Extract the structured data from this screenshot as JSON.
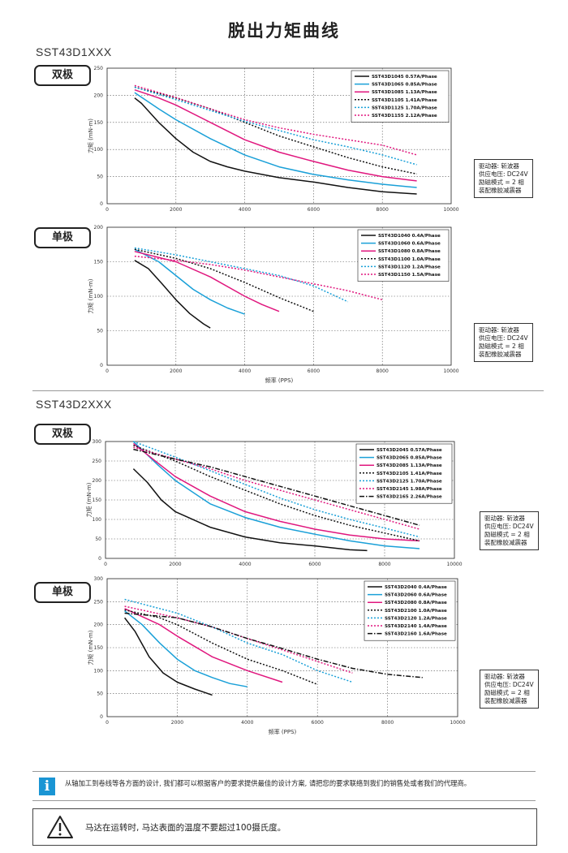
{
  "page": {
    "title": "脱出力矩曲线",
    "sections": [
      {
        "title": "SST43D1XXX"
      },
      {
        "title": "SST43D2XXX"
      }
    ],
    "modes": {
      "bipolar": "双极",
      "unipolar": "单极"
    },
    "notes": [
      "驱动器: 斩波器",
      "供应电压: DC24V",
      "励磁模式 = 2 相",
      "装配橡胶减震器"
    ],
    "info_icon": "i",
    "info_text": "从轴加工到卷线等各方面的设计, 我们都可以根据客户的要求提供最佳的设计方案, 请把您的要求联络到我们的销售处或者我们的代理商。",
    "warning_text": "马达在运转时, 马达表面的温度不要超过100摄氏度。",
    "warning_icon": "warning-triangle-icon"
  },
  "chart_data": [
    {
      "type": "line",
      "ylabel": "力矩 (mN-m)",
      "xlabel": "",
      "xlim": [
        0,
        10000
      ],
      "ylim": [
        0,
        250
      ],
      "xticks": [
        0,
        2000,
        4000,
        6000,
        8000,
        10000
      ],
      "yticks": [
        0,
        50,
        100,
        150,
        200,
        250
      ],
      "grid": true,
      "legend": "top-right",
      "series": [
        {
          "name": "SST43D1045  0.57A/Phase",
          "color": "#111111",
          "dash": "solid",
          "x": [
            800,
            1000,
            1500,
            2000,
            2500,
            3000,
            3500,
            4000,
            5000,
            6000,
            7000,
            8000,
            9000
          ],
          "y": [
            195,
            185,
            150,
            120,
            95,
            78,
            68,
            60,
            48,
            40,
            30,
            22,
            18
          ]
        },
        {
          "name": "SST43D1065  0.85A/Phase",
          "color": "#1aa0d8",
          "dash": "solid",
          "x": [
            800,
            1500,
            2000,
            3000,
            4000,
            5000,
            6000,
            7000,
            8000,
            9000
          ],
          "y": [
            205,
            175,
            155,
            120,
            90,
            68,
            54,
            44,
            36,
            30
          ]
        },
        {
          "name": "SST43D1085  1.13A/Phase",
          "color": "#e0177e",
          "dash": "solid",
          "x": [
            800,
            1500,
            2000,
            3000,
            4000,
            5000,
            6000,
            7000,
            8000,
            9000
          ],
          "y": [
            210,
            195,
            182,
            150,
            118,
            95,
            78,
            62,
            50,
            42
          ]
        },
        {
          "name": "SST43D1105  1.41A/Phase",
          "color": "#111111",
          "dash": "dot",
          "x": [
            800,
            2000,
            3000,
            4000,
            5000,
            6000,
            7000,
            8000,
            9000
          ],
          "y": [
            215,
            195,
            175,
            150,
            125,
            105,
            85,
            68,
            55
          ]
        },
        {
          "name": "SST43D1125  1.70A/Phase",
          "color": "#1aa0d8",
          "dash": "dot",
          "x": [
            800,
            2000,
            3000,
            4000,
            5000,
            6000,
            7000,
            8000,
            9000
          ],
          "y": [
            215,
            192,
            172,
            152,
            135,
            118,
            105,
            90,
            72
          ]
        },
        {
          "name": "SST43D1155  2.12A/Phase",
          "color": "#e0177e",
          "dash": "dot",
          "x": [
            800,
            2000,
            3000,
            4000,
            5000,
            6000,
            7000,
            8000,
            9000
          ],
          "y": [
            218,
            196,
            175,
            155,
            140,
            128,
            118,
            108,
            90
          ]
        }
      ]
    },
    {
      "type": "line",
      "ylabel": "力矩 (mN-m)",
      "xlabel": "频率 (PPS)",
      "xlim": [
        0,
        10000
      ],
      "ylim": [
        0,
        200
      ],
      "xticks": [
        0,
        2000,
        4000,
        6000,
        8000,
        10000
      ],
      "yticks": [
        0,
        50,
        100,
        150,
        200
      ],
      "grid": true,
      "legend": "top-right",
      "series": [
        {
          "name": "SST43D1040  0.4A/Phase",
          "color": "#111111",
          "dash": "solid",
          "x": [
            800,
            1200,
            1600,
            2000,
            2400,
            2800,
            3000
          ],
          "y": [
            152,
            140,
            118,
            95,
            75,
            60,
            54
          ]
        },
        {
          "name": "SST43D1060  0.6A/Phase",
          "color": "#1aa0d8",
          "dash": "solid",
          "x": [
            800,
            1500,
            2000,
            2500,
            3000,
            3500,
            4000
          ],
          "y": [
            168,
            150,
            130,
            110,
            95,
            83,
            74
          ]
        },
        {
          "name": "SST43D1080  0.8A/Phase",
          "color": "#e0177e",
          "dash": "solid",
          "x": [
            800,
            2000,
            3000,
            4000,
            4500,
            5000
          ],
          "y": [
            165,
            150,
            128,
            100,
            88,
            78
          ]
        },
        {
          "name": "SST43D1100  1.0A/Phase",
          "color": "#111111",
          "dash": "dot",
          "x": [
            800,
            2000,
            3000,
            4000,
            5000,
            6000
          ],
          "y": [
            168,
            155,
            140,
            120,
            98,
            78
          ]
        },
        {
          "name": "SST43D1120  1.2A/Phase",
          "color": "#1aa0d8",
          "dash": "dot",
          "x": [
            800,
            2000,
            3000,
            4000,
            5000,
            6000,
            7000
          ],
          "y": [
            170,
            160,
            150,
            140,
            130,
            115,
            92
          ]
        },
        {
          "name": "SST43D1150  1.5A/Phase",
          "color": "#e0177e",
          "dash": "dot",
          "x": [
            800,
            2000,
            3000,
            4000,
            5000,
            6000,
            7000,
            8000
          ],
          "y": [
            158,
            152,
            146,
            138,
            128,
            118,
            108,
            95
          ]
        }
      ]
    },
    {
      "type": "line",
      "ylabel": "力矩 (mN-m)",
      "xlabel": "",
      "xlim": [
        0,
        10000
      ],
      "ylim": [
        0,
        300
      ],
      "xticks": [
        0,
        2000,
        4000,
        6000,
        8000,
        10000
      ],
      "yticks": [
        0,
        50,
        100,
        150,
        200,
        250,
        300
      ],
      "grid": true,
      "legend": "top-right",
      "series": [
        {
          "name": "SST43D2045  0.57A/Phase",
          "color": "#111111",
          "dash": "solid",
          "x": [
            800,
            1200,
            1600,
            2000,
            3000,
            4000,
            5000,
            6000,
            7000,
            7500
          ],
          "y": [
            230,
            195,
            150,
            120,
            80,
            55,
            40,
            32,
            22,
            20
          ]
        },
        {
          "name": "SST43D2065  0.85A/Phase",
          "color": "#1aa0d8",
          "dash": "solid",
          "x": [
            800,
            1500,
            2000,
            3000,
            4000,
            5000,
            6000,
            7000,
            8000,
            9000
          ],
          "y": [
            300,
            240,
            200,
            140,
            105,
            80,
            62,
            45,
            32,
            25
          ]
        },
        {
          "name": "SST43D2085  1.13A/Phase",
          "color": "#e0177e",
          "dash": "solid",
          "x": [
            800,
            1500,
            2000,
            3000,
            4000,
            5000,
            6000,
            7000,
            8000,
            9000
          ],
          "y": [
            295,
            245,
            210,
            160,
            120,
            95,
            75,
            60,
            50,
            45
          ]
        },
        {
          "name": "SST43D2105  1.41A/Phase",
          "color": "#111111",
          "dash": "dot",
          "x": [
            800,
            2000,
            3000,
            4000,
            5000,
            6000,
            7000,
            8000,
            9000
          ],
          "y": [
            290,
            250,
            210,
            175,
            140,
            110,
            85,
            65,
            45
          ]
        },
        {
          "name": "SST43D2125  1.70A/Phase",
          "color": "#1aa0d8",
          "dash": "dot",
          "x": [
            800,
            2000,
            3000,
            4000,
            5000,
            6000,
            7000,
            8000,
            9000
          ],
          "y": [
            300,
            260,
            225,
            190,
            155,
            125,
            100,
            78,
            55
          ]
        },
        {
          "name": "SST43D2145  1.98A/Phase",
          "color": "#e0177e",
          "dash": "dot",
          "x": [
            800,
            2000,
            3000,
            4000,
            5000,
            6000,
            7000,
            8000,
            9000
          ],
          "y": [
            285,
            255,
            230,
            200,
            175,
            150,
            125,
            100,
            75
          ]
        },
        {
          "name": "SST43D2165  2.26A/Phase",
          "color": "#111111",
          "dash": "dashdot",
          "x": [
            800,
            2000,
            3000,
            4000,
            5000,
            6000,
            7000,
            8000,
            9000
          ],
          "y": [
            280,
            255,
            235,
            210,
            185,
            160,
            135,
            110,
            85
          ]
        }
      ]
    },
    {
      "type": "line",
      "ylabel": "力矩 (mN-m)",
      "xlabel": "频率 (PPS)",
      "xlim": [
        0,
        10000
      ],
      "ylim": [
        0,
        300
      ],
      "xticks": [
        0,
        2000,
        4000,
        6000,
        8000,
        10000
      ],
      "yticks": [
        0,
        50,
        100,
        150,
        200,
        250,
        300
      ],
      "grid": true,
      "legend": "top-right",
      "series": [
        {
          "name": "SST43D2040  0.4A/Phase",
          "color": "#111111",
          "dash": "solid",
          "x": [
            500,
            800,
            1200,
            1600,
            2000,
            2500,
            3000
          ],
          "y": [
            215,
            185,
            130,
            95,
            75,
            60,
            47
          ]
        },
        {
          "name": "SST43D2060  0.6A/Phase",
          "color": "#1aa0d8",
          "dash": "solid",
          "x": [
            500,
            1000,
            1500,
            2000,
            2500,
            3000,
            3500,
            4000
          ],
          "y": [
            230,
            200,
            160,
            125,
            100,
            85,
            72,
            65
          ]
        },
        {
          "name": "SST43D2080  0.8A/Phase",
          "color": "#e0177e",
          "dash": "solid",
          "x": [
            500,
            1500,
            2000,
            3000,
            4000,
            5000
          ],
          "y": [
            235,
            200,
            175,
            130,
            100,
            75
          ]
        },
        {
          "name": "SST43D2100  1.0A/Phase",
          "color": "#111111",
          "dash": "dot",
          "x": [
            500,
            1500,
            2000,
            3000,
            4000,
            5000,
            6000
          ],
          "y": [
            232,
            215,
            200,
            160,
            125,
            100,
            70
          ]
        },
        {
          "name": "SST43D2120  1.2A/Phase",
          "color": "#1aa0d8",
          "dash": "dot",
          "x": [
            500,
            1500,
            2000,
            3000,
            4000,
            5000,
            6000,
            7000
          ],
          "y": [
            255,
            235,
            225,
            195,
            160,
            135,
            100,
            75
          ]
        },
        {
          "name": "SST43D2140  1.4A/Phase",
          "color": "#e0177e",
          "dash": "dot",
          "x": [
            500,
            2000,
            3000,
            4000,
            5000,
            6000,
            7000
          ],
          "y": [
            240,
            215,
            195,
            170,
            145,
            120,
            95
          ]
        },
        {
          "name": "SST43D2160  1.6A/Phase",
          "color": "#111111",
          "dash": "dashdot",
          "x": [
            500,
            2000,
            3000,
            4000,
            5000,
            6000,
            7000,
            8000,
            9000
          ],
          "y": [
            225,
            215,
            195,
            170,
            148,
            125,
            105,
            92,
            85
          ]
        }
      ]
    }
  ]
}
